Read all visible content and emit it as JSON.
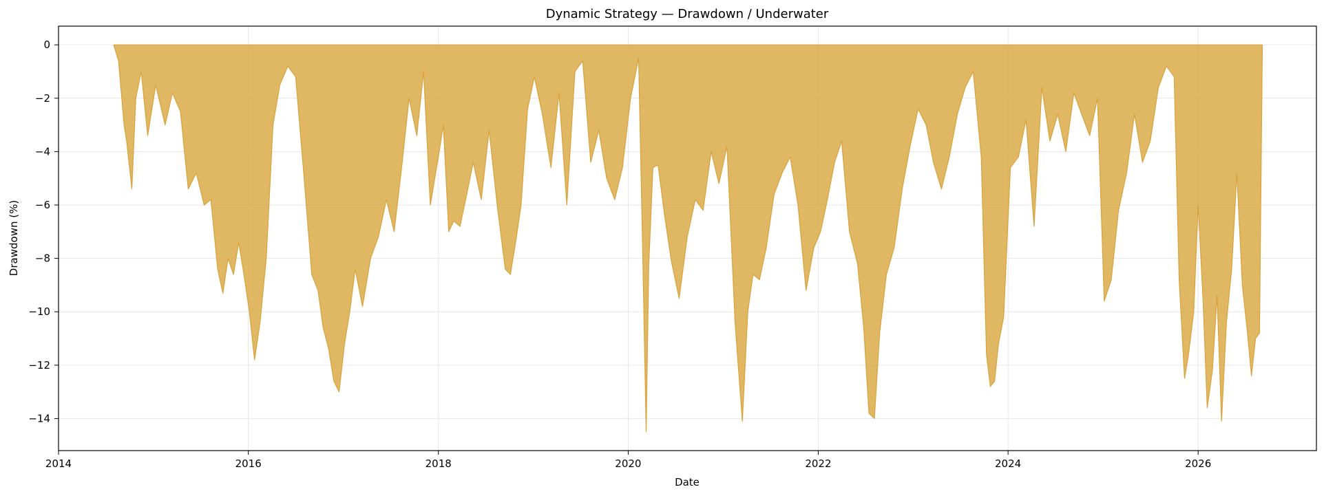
{
  "chart_data": {
    "type": "area",
    "title": "Dynamic Strategy — Drawdown / Underwater",
    "xlabel": "Date",
    "ylabel": "Drawdown (%)",
    "x_ticks": [
      "2014",
      "2016",
      "2018",
      "2020",
      "2022",
      "2024",
      "2026"
    ],
    "y_ticks": [
      "0",
      "−2",
      "−4",
      "−6",
      "−8",
      "−10",
      "−12",
      "−14"
    ],
    "xlim": [
      "2014-01-01",
      "2027-04-01"
    ],
    "ylim": [
      -15.2,
      0.7
    ],
    "grid": true,
    "fill_color": "#dbaa48",
    "line_color": "#d9a23c",
    "series": [
      {
        "x": [
          "2014-08-01",
          "2014-08-20",
          "2014-09-10",
          "2014-09-20",
          "2014-10-10",
          "2014-10-25",
          "2014-11-15",
          "2014-12-10",
          "2015-01-10",
          "2015-02-15",
          "2015-03-15",
          "2015-04-15",
          "2015-05-15",
          "2015-06-15",
          "2015-07-15",
          "2015-08-10",
          "2015-09-05",
          "2015-09-25",
          "2015-10-15",
          "2015-11-05",
          "2015-11-25",
          "2015-12-15",
          "2016-01-05",
          "2016-01-25",
          "2016-02-15",
          "2016-03-10",
          "2016-04-05",
          "2016-05-01",
          "2016-06-01",
          "2016-07-01",
          "2016-08-01",
          "2016-09-01",
          "2016-09-25",
          "2016-10-15",
          "2016-11-05",
          "2016-11-25",
          "2016-12-15",
          "2017-01-05",
          "2017-01-25",
          "2017-02-15",
          "2017-03-15",
          "2017-04-15",
          "2017-05-15",
          "2017-06-15",
          "2017-07-15",
          "2017-08-15",
          "2017-09-10",
          "2017-10-10",
          "2017-11-05",
          "2017-12-01",
          "2018-01-01",
          "2018-01-20",
          "2018-02-10",
          "2018-03-01",
          "2018-03-25",
          "2018-04-20",
          "2018-05-15",
          "2018-06-15",
          "2018-07-15",
          "2018-08-15",
          "2018-09-15",
          "2018-10-05",
          "2018-10-25",
          "2018-11-15",
          "2018-12-10",
          "2019-01-05",
          "2019-02-05",
          "2019-03-10",
          "2019-04-10",
          "2019-05-10",
          "2019-06-10",
          "2019-07-10",
          "2019-08-10",
          "2019-09-10",
          "2019-10-10",
          "2019-11-10",
          "2019-12-10",
          "2020-01-10",
          "2020-02-10",
          "2020-02-25",
          "2020-03-10",
          "2020-03-20",
          "2020-04-05",
          "2020-04-25",
          "2020-05-20",
          "2020-06-15",
          "2020-07-15",
          "2020-08-15",
          "2020-09-15",
          "2020-10-15",
          "2020-11-15",
          "2020-12-15",
          "2021-01-15",
          "2021-02-15",
          "2021-03-15",
          "2021-04-05",
          "2021-04-25",
          "2021-05-20",
          "2021-06-15",
          "2021-07-15",
          "2021-08-15",
          "2021-09-15",
          "2021-10-15",
          "2021-11-15",
          "2021-12-15",
          "2022-01-10",
          "2022-02-05",
          "2022-03-05",
          "2022-04-01",
          "2022-05-01",
          "2022-06-01",
          "2022-06-25",
          "2022-07-15",
          "2022-08-05",
          "2022-08-25",
          "2022-09-20",
          "2022-10-20",
          "2022-11-20",
          "2022-12-20",
          "2023-01-20",
          "2023-02-20",
          "2023-03-20",
          "2023-04-20",
          "2023-05-20",
          "2023-06-20",
          "2023-07-20",
          "2023-08-20",
          "2023-09-20",
          "2023-10-10",
          "2023-10-25",
          "2023-11-10",
          "2023-11-25",
          "2023-12-15",
          "2024-01-10",
          "2024-02-10",
          "2024-03-10",
          "2024-04-10",
          "2024-05-10",
          "2024-06-10",
          "2024-07-10",
          "2024-08-10",
          "2024-09-10",
          "2024-10-10",
          "2024-11-10",
          "2024-12-10",
          "2025-01-05",
          "2025-02-01",
          "2025-03-01",
          "2025-04-01",
          "2025-05-01",
          "2025-06-01",
          "2025-07-01",
          "2025-08-01",
          "2025-09-01",
          "2025-10-01",
          "2025-10-20",
          "2025-11-10",
          "2025-11-25",
          "2025-12-15",
          "2026-01-01",
          "2026-01-20",
          "2026-02-05",
          "2026-02-25",
          "2026-03-15",
          "2026-04-01",
          "2026-04-20",
          "2026-05-10",
          "2026-05-30",
          "2026-06-20",
          "2026-07-10",
          "2026-07-25",
          "2026-08-10",
          "2026-08-25",
          "2026-09-05"
        ],
        "y": [
          0,
          -0.6,
          -3.0,
          -3.6,
          -5.4,
          -2.0,
          -1.0,
          -3.4,
          -1.5,
          -3.0,
          -1.8,
          -2.5,
          -5.4,
          -4.8,
          -6.0,
          -5.8,
          -8.4,
          -9.3,
          -8.0,
          -8.6,
          -7.4,
          -8.6,
          -10.0,
          -11.8,
          -10.4,
          -8.0,
          -3.0,
          -1.5,
          -0.8,
          -1.2,
          -4.8,
          -8.6,
          -9.2,
          -10.6,
          -11.4,
          -12.6,
          -13.0,
          -11.2,
          -10.0,
          -8.4,
          -9.8,
          -8.0,
          -7.2,
          -5.8,
          -7.0,
          -4.4,
          -2.0,
          -3.4,
          -1.0,
          -6.0,
          -4.2,
          -3.0,
          -7.0,
          -6.6,
          -6.8,
          -5.6,
          -4.4,
          -5.8,
          -3.2,
          -6.0,
          -8.4,
          -8.6,
          -7.4,
          -6.0,
          -2.4,
          -1.2,
          -2.6,
          -4.6,
          -1.8,
          -6.0,
          -1.0,
          -0.6,
          -4.4,
          -3.2,
          -5.0,
          -5.8,
          -4.6,
          -2.0,
          -0.5,
          -7.4,
          -14.5,
          -8.3,
          -4.6,
          -4.5,
          -6.4,
          -8.1,
          -9.5,
          -7.2,
          -5.8,
          -6.2,
          -4.0,
          -5.2,
          -3.8,
          -10.4,
          -14.1,
          -10.0,
          -8.6,
          -8.8,
          -7.6,
          -5.6,
          -4.8,
          -4.2,
          -6.0,
          -9.2,
          -7.6,
          -7.0,
          -5.8,
          -4.4,
          -3.6,
          -7.0,
          -8.2,
          -10.6,
          -13.8,
          -14.0,
          -10.8,
          -8.6,
          -7.6,
          -5.4,
          -3.8,
          -2.4,
          -3.0,
          -4.4,
          -5.4,
          -4.2,
          -2.6,
          -1.6,
          -1.0,
          -4.2,
          -11.6,
          -12.8,
          -12.6,
          -11.2,
          -10.2,
          -4.6,
          -4.2,
          -2.8,
          -6.8,
          -1.6,
          -3.6,
          -2.6,
          -4.0,
          -1.8,
          -2.6,
          -3.4,
          -2.0,
          -9.6,
          -8.8,
          -6.2,
          -4.8,
          -2.6,
          -4.4,
          -3.6,
          -1.6,
          -0.8,
          -1.2,
          -8.8,
          -12.5,
          -11.6,
          -10.0,
          -6.0,
          -9.6,
          -13.6,
          -12.2,
          -9.4,
          -14.1,
          -10.4,
          -8.4,
          -4.8,
          -9.0,
          -10.8,
          -12.4,
          -11.0,
          -10.8,
          0
        ]
      }
    ]
  }
}
